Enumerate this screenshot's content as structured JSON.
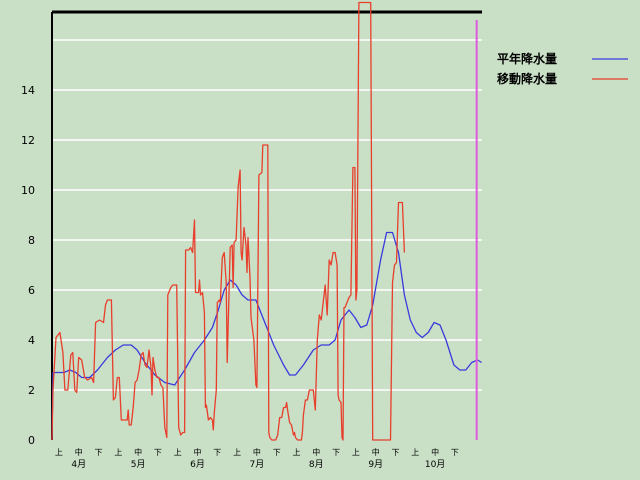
{
  "chart_data": {
    "type": "line",
    "xlim": [
      0,
      21
    ],
    "ylim": [
      0,
      17
    ],
    "yticks": [
      0,
      2,
      4,
      6,
      8,
      10,
      12,
      14
    ],
    "grid": "horizontal",
    "legend_position": "top-right",
    "x_sublabels": [
      "上",
      "中",
      "下",
      "上",
      "中",
      "下",
      "上",
      "中",
      "下",
      "上",
      "中",
      "下",
      "上",
      "中",
      "下",
      "上",
      "中",
      "下",
      "上",
      "中",
      "下"
    ],
    "month_labels": [
      {
        "label": "4月",
        "x": 0.5
      },
      {
        "label": "5月",
        "x": 3.5
      },
      {
        "label": "6月",
        "x": 6.5
      },
      {
        "label": "7月",
        "x": 9.5
      },
      {
        "label": "8月",
        "x": 12.5
      },
      {
        "label": "9月",
        "x": 15.5
      },
      {
        "label": "10月",
        "x": 18.5
      }
    ],
    "current_marker_x": 20.6,
    "series": [
      {
        "name": "平年降水量",
        "color": "#3a3adc",
        "points": [
          [
            0,
            0
          ],
          [
            0.05,
            2.7
          ],
          [
            0.6,
            2.7
          ],
          [
            0.9,
            2.8
          ],
          [
            1.2,
            2.7
          ],
          [
            1.5,
            2.5
          ],
          [
            1.9,
            2.5
          ],
          [
            2.3,
            2.8
          ],
          [
            2.8,
            3.3
          ],
          [
            3.2,
            3.6
          ],
          [
            3.6,
            3.8
          ],
          [
            4.0,
            3.8
          ],
          [
            4.3,
            3.6
          ],
          [
            4.7,
            3.1
          ],
          [
            5.2,
            2.6
          ],
          [
            5.7,
            2.3
          ],
          [
            6.2,
            2.2
          ],
          [
            6.7,
            2.8
          ],
          [
            7.2,
            3.5
          ],
          [
            7.7,
            4.0
          ],
          [
            8.1,
            4.5
          ],
          [
            8.4,
            5.2
          ],
          [
            8.7,
            6.0
          ],
          [
            9.0,
            6.4
          ],
          [
            9.3,
            6.2
          ],
          [
            9.6,
            5.8
          ],
          [
            9.9,
            5.6
          ],
          [
            10.3,
            5.6
          ],
          [
            10.7,
            4.8
          ],
          [
            11.2,
            3.8
          ],
          [
            11.7,
            3.0
          ],
          [
            12.0,
            2.6
          ],
          [
            12.3,
            2.6
          ],
          [
            12.7,
            3.0
          ],
          [
            13.2,
            3.6
          ],
          [
            13.6,
            3.8
          ],
          [
            14.0,
            3.8
          ],
          [
            14.3,
            4.0
          ],
          [
            14.6,
            4.8
          ],
          [
            15.0,
            5.2
          ],
          [
            15.3,
            4.9
          ],
          [
            15.6,
            4.5
          ],
          [
            15.9,
            4.6
          ],
          [
            16.2,
            5.4
          ],
          [
            16.6,
            7.2
          ],
          [
            16.9,
            8.3
          ],
          [
            17.2,
            8.3
          ],
          [
            17.5,
            7.5
          ],
          [
            17.8,
            5.8
          ],
          [
            18.1,
            4.8
          ],
          [
            18.4,
            4.3
          ],
          [
            18.7,
            4.1
          ],
          [
            19.0,
            4.3
          ],
          [
            19.3,
            4.7
          ],
          [
            19.6,
            4.6
          ],
          [
            19.9,
            4.0
          ],
          [
            20.3,
            3.0
          ],
          [
            20.6,
            2.8
          ],
          [
            20.9,
            2.8
          ],
          [
            21.2,
            3.1
          ],
          [
            21.5,
            3.2
          ],
          [
            21.7,
            3.1
          ]
        ]
      },
      {
        "name": "移動降水量",
        "color": "#e83e2c",
        "points": [
          [
            0,
            0
          ],
          [
            0.05,
            2.0
          ],
          [
            0.2,
            4.1
          ],
          [
            0.4,
            4.3
          ],
          [
            0.55,
            3.5
          ],
          [
            0.65,
            2.0
          ],
          [
            0.8,
            2.0
          ],
          [
            0.95,
            3.4
          ],
          [
            1.05,
            3.5
          ],
          [
            1.15,
            2.0
          ],
          [
            1.25,
            1.9
          ],
          [
            1.35,
            3.3
          ],
          [
            1.5,
            3.2
          ],
          [
            1.65,
            2.5
          ],
          [
            1.8,
            2.4
          ],
          [
            2.0,
            2.5
          ],
          [
            2.1,
            2.3
          ],
          [
            2.2,
            4.7
          ],
          [
            2.4,
            4.8
          ],
          [
            2.6,
            4.7
          ],
          [
            2.7,
            5.4
          ],
          [
            2.8,
            5.6
          ],
          [
            3.0,
            5.6
          ],
          [
            3.1,
            1.6
          ],
          [
            3.2,
            1.7
          ],
          [
            3.3,
            2.5
          ],
          [
            3.4,
            2.5
          ],
          [
            3.5,
            0.8
          ],
          [
            3.6,
            0.8
          ],
          [
            3.8,
            0.8
          ],
          [
            3.85,
            1.2
          ],
          [
            3.9,
            0.6
          ],
          [
            4.0,
            0.6
          ],
          [
            4.1,
            1.3
          ],
          [
            4.2,
            2.3
          ],
          [
            4.3,
            2.4
          ],
          [
            4.4,
            2.8
          ],
          [
            4.5,
            3.4
          ],
          [
            4.6,
            3.5
          ],
          [
            4.7,
            3.0
          ],
          [
            4.8,
            2.9
          ],
          [
            4.9,
            3.6
          ],
          [
            5.0,
            2.9
          ],
          [
            5.05,
            1.8
          ],
          [
            5.1,
            3.3
          ],
          [
            5.2,
            2.8
          ],
          [
            5.3,
            2.5
          ],
          [
            5.4,
            2.5
          ],
          [
            5.5,
            2.2
          ],
          [
            5.6,
            2.1
          ],
          [
            5.7,
            0.5
          ],
          [
            5.8,
            0.1
          ],
          [
            5.85,
            5.8
          ],
          [
            6.0,
            6.1
          ],
          [
            6.1,
            6.2
          ],
          [
            6.3,
            6.2
          ],
          [
            6.4,
            0.5
          ],
          [
            6.5,
            0.2
          ],
          [
            6.6,
            0.3
          ],
          [
            6.7,
            0.3
          ],
          [
            6.75,
            7.6
          ],
          [
            6.9,
            7.6
          ],
          [
            7.0,
            7.7
          ],
          [
            7.1,
            7.5
          ],
          [
            7.2,
            8.8
          ],
          [
            7.25,
            5.9
          ],
          [
            7.3,
            5.9
          ],
          [
            7.4,
            5.9
          ],
          [
            7.45,
            6.4
          ],
          [
            7.5,
            5.8
          ],
          [
            7.6,
            5.9
          ],
          [
            7.7,
            5.1
          ],
          [
            7.75,
            1.3
          ],
          [
            7.8,
            1.4
          ],
          [
            7.9,
            0.8
          ],
          [
            8.0,
            0.9
          ],
          [
            8.1,
            0.8
          ],
          [
            8.15,
            0.4
          ],
          [
            8.2,
            1.1
          ],
          [
            8.3,
            2.0
          ],
          [
            8.35,
            5.5
          ],
          [
            8.45,
            5.6
          ],
          [
            8.5,
            5.5
          ],
          [
            8.6,
            7.3
          ],
          [
            8.7,
            7.5
          ],
          [
            8.8,
            6.3
          ],
          [
            8.85,
            3.1
          ],
          [
            8.9,
            4.6
          ],
          [
            9.0,
            7.7
          ],
          [
            9.1,
            7.8
          ],
          [
            9.15,
            6.1
          ],
          [
            9.2,
            7.9
          ],
          [
            9.3,
            8.0
          ],
          [
            9.4,
            10.1
          ],
          [
            9.5,
            10.8
          ],
          [
            9.55,
            7.5
          ],
          [
            9.6,
            7.2
          ],
          [
            9.7,
            8.5
          ],
          [
            9.8,
            7.8
          ],
          [
            9.85,
            6.7
          ],
          [
            9.9,
            8.1
          ],
          [
            10.0,
            6.5
          ],
          [
            10.05,
            4.9
          ],
          [
            10.2,
            4.0
          ],
          [
            10.3,
            2.2
          ],
          [
            10.35,
            2.1
          ],
          [
            10.45,
            10.6
          ],
          [
            10.6,
            10.7
          ],
          [
            10.65,
            11.8
          ],
          [
            10.8,
            11.8
          ],
          [
            10.9,
            11.8
          ],
          [
            10.95,
            0.3
          ],
          [
            11.0,
            0.1
          ],
          [
            11.1,
            0.0
          ],
          [
            11.3,
            0.0
          ],
          [
            11.4,
            0.2
          ],
          [
            11.5,
            0.9
          ],
          [
            11.6,
            0.9
          ],
          [
            11.7,
            1.3
          ],
          [
            11.8,
            1.3
          ],
          [
            11.85,
            1.5
          ],
          [
            11.9,
            1.2
          ],
          [
            12.0,
            0.7
          ],
          [
            12.1,
            0.6
          ],
          [
            12.2,
            0.2
          ],
          [
            12.25,
            0.3
          ],
          [
            12.3,
            0.1
          ],
          [
            12.4,
            0.0
          ],
          [
            12.6,
            0.0
          ],
          [
            12.65,
            0.3
          ],
          [
            12.7,
            1.0
          ],
          [
            12.8,
            1.6
          ],
          [
            12.9,
            1.6
          ],
          [
            13.0,
            2.0
          ],
          [
            13.2,
            2.0
          ],
          [
            13.3,
            1.2
          ],
          [
            13.4,
            4.0
          ],
          [
            13.5,
            5.0
          ],
          [
            13.6,
            4.8
          ],
          [
            13.7,
            5.5
          ],
          [
            13.8,
            6.2
          ],
          [
            13.9,
            5.0
          ],
          [
            14.0,
            7.2
          ],
          [
            14.1,
            7.0
          ],
          [
            14.2,
            7.5
          ],
          [
            14.3,
            7.5
          ],
          [
            14.4,
            7.0
          ],
          [
            14.45,
            1.8
          ],
          [
            14.5,
            1.6
          ],
          [
            14.6,
            1.5
          ],
          [
            14.65,
            0.1
          ],
          [
            14.7,
            0.0
          ],
          [
            14.75,
            5.3
          ],
          [
            14.8,
            5.3
          ],
          [
            14.9,
            5.5
          ],
          [
            15.0,
            5.7
          ],
          [
            15.1,
            5.8
          ],
          [
            15.2,
            10.9
          ],
          [
            15.3,
            10.9
          ],
          [
            15.35,
            5.6
          ],
          [
            15.4,
            6.0
          ],
          [
            15.5,
            17.5
          ],
          [
            15.6,
            17.5
          ],
          [
            15.7,
            17.5
          ],
          [
            15.8,
            17.5
          ],
          [
            15.9,
            17.5
          ],
          [
            16.0,
            17.5
          ],
          [
            16.1,
            17.5
          ],
          [
            16.2,
            0.0
          ],
          [
            16.4,
            0.0
          ],
          [
            16.6,
            0.0
          ],
          [
            16.8,
            0.0
          ],
          [
            17.0,
            0.0
          ],
          [
            17.1,
            0.0
          ],
          [
            17.2,
            6.3
          ],
          [
            17.3,
            7.0
          ],
          [
            17.4,
            7.1
          ],
          [
            17.5,
            9.5
          ],
          [
            17.6,
            9.5
          ],
          [
            17.7,
            9.5
          ],
          [
            17.8,
            7.5
          ]
        ]
      }
    ]
  }
}
